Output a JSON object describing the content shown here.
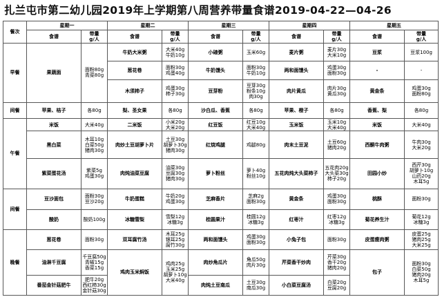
{
  "title": "扎兰屯市第二幼儿园2019年上学期第八周营养带量食谱2019-04-22—04-26",
  "header": {
    "meal_label": "餐次",
    "days": [
      "星期一",
      "星期二",
      "星期三",
      "星期四",
      "星期五"
    ],
    "dish_label": "食谱",
    "amount_label": "带量",
    "unit_label": "g/人"
  },
  "colors": {
    "dish_red": "#e00000",
    "amount_green": "#1a8c1a",
    "border": "#555555"
  },
  "meals": {
    "breakfast": "早餐",
    "snack1": "间餐",
    "lunch": "午餐",
    "snack2": "间餐",
    "dinner": "晚餐"
  },
  "breakfast": {
    "mon": {
      "dish": "果蔬面",
      "amt": "面粉80g\n青菜80g"
    },
    "tue": [
      {
        "dish": "牛奶大米粥",
        "amt": "大米40g\n牛奶10g"
      },
      {
        "dish": "葱花卷",
        "amt": "面粉30g\n鸡蛋40g"
      },
      {
        "dish": "木须柿子",
        "amt": "鸡蛋30g\n柿子30g"
      }
    ],
    "wed": [
      {
        "dish": "小碴粥",
        "amt": "玉米60g"
      },
      {
        "dish": "牛奶馒头",
        "amt": "面粉30g\n牛奶10g"
      },
      {
        "dish": "豆芽粉",
        "amt": "豆芽30g\n粉条10g\n肉30g"
      }
    ],
    "thu": [
      {
        "dish": "麦片粥",
        "amt": "麦片30g\n大米10g"
      },
      {
        "dish": "两和面馒头",
        "amt": "鸡蛋30g\n面粉30g"
      },
      {
        "dish": "肉片黄瓜",
        "amt": "肉片30g\n黄瓜30g"
      }
    ],
    "fri": [
      {
        "dish": "豆浆",
        "amt": "豆浆100g"
      },
      {
        "dish": "-",
        "amt": "-"
      },
      {
        "dish": "黄金条",
        "amt": "鸡蛋30g\n面粉80g"
      }
    ]
  },
  "snack1": {
    "mon": {
      "dish": "苹果、桔子",
      "amt": "各80g"
    },
    "tue": {
      "dish": "梨、圣女果",
      "amt": "各80g"
    },
    "wed": {
      "dish": "沙白瓜、香蕉",
      "amt": "各80g"
    },
    "thu": {
      "dish": "苹果、橙子",
      "amt": "各80g"
    },
    "fri": {
      "dish": "香蕉、梨",
      "amt": "各80g"
    }
  },
  "lunch": {
    "mon": [
      {
        "dish": "米饭",
        "amt": "大米40g"
      },
      {
        "dish": "黑白菜",
        "amt": "木耳10g\n白菜50g\n猪肉30g"
      },
      {
        "dish": "紫菜蛋花汤",
        "amt": "紫菜5g\n鸡蛋30g"
      }
    ],
    "tue": [
      {
        "dish": "二米饭",
        "amt": "小米20g\n大米20g"
      },
      {
        "dish": "肉炒土豆胡萝卜片",
        "amt": "土豆30g\n胡萝卜30g\n猪肉30g"
      },
      {
        "dish": "肉炖油菜豆腐",
        "amt": "油菜30g\n豆腐30g\n猪肉30g"
      }
    ],
    "wed": [
      {
        "dish": "红豆饭",
        "amt": "红豆10g\n大米40g"
      },
      {
        "dish": "红烧鸡腿",
        "amt": "鸡腿80g"
      },
      {
        "dish": "萝卜粉丝",
        "amt": "萝卜40g\n粉丝10g"
      }
    ],
    "thu": [
      {
        "dish": "玉米饭",
        "amt": "玉米10g\n大米40g"
      },
      {
        "dish": "肉末土豆泥",
        "amt": "土豆60g\n猪肉20g"
      },
      {
        "dish": "五花肉炖大头菜柿子",
        "amt": "五花肉20g\n大头菜30g\n柿子20g"
      }
    ],
    "fri": [
      {
        "dish": "米饭",
        "amt": "大米40g"
      },
      {
        "dish": "西酮牛肉粥",
        "amt": "牛肉30g\n大米20g"
      },
      {
        "dish": "田园小炒",
        "amt": "西芹30g\n胡萝卜10g\n山药20g\n木耳5g"
      }
    ]
  },
  "snack2": {
    "mon": [
      {
        "dish": "豆沙面包",
        "amt": "面粉30g\n豆沙20g"
      },
      {
        "dish": "酸奶",
        "amt": "酸奶100g"
      }
    ],
    "tue": [
      {
        "dish": "牛奶蛋糕",
        "amt": "牛奶20g\n鸡蛋30g"
      },
      {
        "dish": "冰糖雪梨",
        "amt": "雪梨12g\n冰糖3g"
      }
    ],
    "wed": [
      {
        "dish": "芝麻香片",
        "amt": "芝麻2g\n面粉30g"
      },
      {
        "dish": "桂圆果汁",
        "amt": "桂圆12g\n冰糖3g"
      }
    ],
    "thu": [
      {
        "dish": "黄金条",
        "amt": "鸡蛋30g\n面粉30g"
      },
      {
        "dish": "红枣汁",
        "amt": "红枣12g\n冰糖3g"
      }
    ],
    "fri": [
      {
        "dish": "桃酥",
        "amt": "面粉30g"
      },
      {
        "dish": "菊花养生汁",
        "amt": "菊花12g\n冰糖3g"
      }
    ]
  },
  "dinner": {
    "mon": [
      {
        "dish": "葱花卷",
        "amt": "面粉30g"
      },
      {
        "dish": "油淋千豆腐",
        "amt": "千豆腐50g\n青椒15g\n香菜15g"
      },
      {
        "dish": "番茄金针菇肥牛",
        "amt": "肥牛20g\n西红柿30g\n金针菇30g"
      }
    ],
    "tue": [
      {
        "dish": "双耳腐竹汤",
        "amt": "木耳25g\n银耳25g\n腐竹30g"
      },
      {
        "dish": "鸡肉玉米焖饭",
        "amt": "鸡肉25g\n玉米25g\n胡萝卜10g\n大米40g"
      }
    ],
    "wed": [
      {
        "dish": "两和面馒头",
        "amt": "鸡蛋30g\n面粉30g"
      },
      {
        "dish": "肉炒角瓜片",
        "amt": "角瓜50g\n肉片30g"
      },
      {
        "dish": "肉炖土豆南瓜",
        "amt": "土豆30g\n南瓜30g"
      }
    ],
    "thu": [
      {
        "dish": "小兔子包",
        "amt": "面粉30g"
      },
      {
        "dish": "芹菜香干炒肉",
        "amt": "芹菜30g\n香干20g\n猪肉20g"
      },
      {
        "dish": "小白菜豆腐汤",
        "amt": "白菜20g\n豆腐20g"
      }
    ],
    "fri": [
      {
        "dish": "皮蛋瘦肉粥",
        "amt": "皮蛋25g\n猪肉25g\n大米25g"
      },
      {
        "dish": "包子",
        "amt": "面粉30g\n白菜50g\n猪肉20g\n木耳5g"
      }
    ]
  }
}
